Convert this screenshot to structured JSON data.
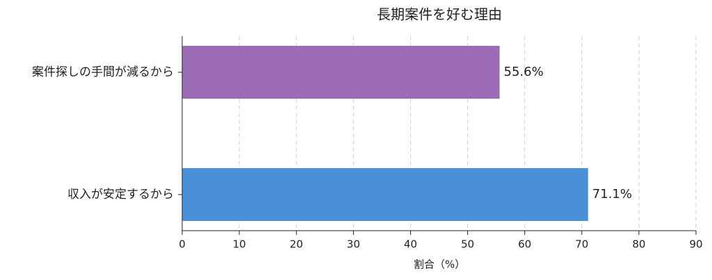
{
  "chart_data": {
    "type": "barh",
    "title": "長期案件を好む理由",
    "xlabel": "割合（%）",
    "categories": [
      "案件探しの手間が減るから",
      "収入が安定するから"
    ],
    "values": [
      55.6,
      71.1
    ],
    "value_labels": [
      "55.6%",
      "71.1%"
    ],
    "colors": [
      "#9b6bb5",
      "#4a90d9"
    ],
    "xlim": [
      0,
      90
    ],
    "xticks": [
      0,
      10,
      20,
      30,
      40,
      50,
      60,
      70,
      80,
      90
    ],
    "grid": true
  }
}
